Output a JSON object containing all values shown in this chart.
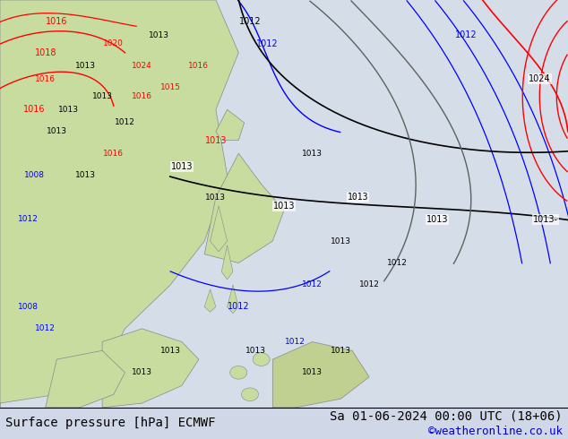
{
  "title_left": "Surface pressure [hPa] ECMWF",
  "title_right": "Sa 01-06-2024 00:00 UTC (18+06)",
  "credit": "©weatheronline.co.uk",
  "bg_color": "#d0d8e8",
  "map_bg": "#e8e8e8",
  "land_color_green": "#c8e0a0",
  "land_color_gray": "#b8b8b8",
  "water_color": "#c8d8f0",
  "font_size_label": 10,
  "font_size_title": 10,
  "font_size_credit": 9,
  "figsize": [
    6.34,
    4.9
  ],
  "dpi": 100
}
